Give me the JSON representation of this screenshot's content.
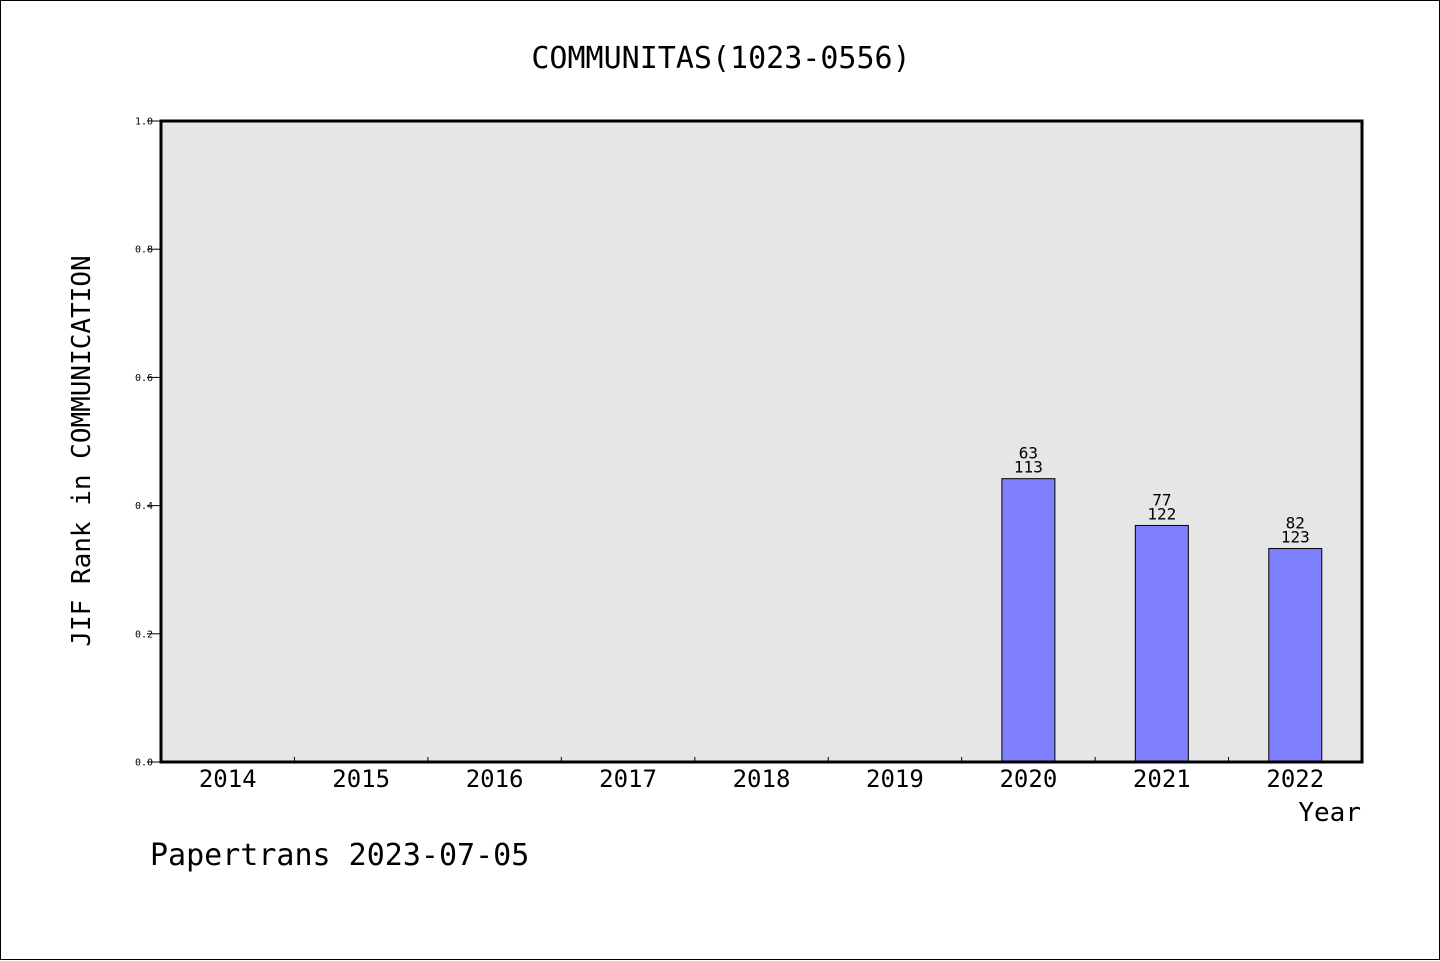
{
  "chart_data": {
    "type": "bar",
    "title": "COMMUNITAS(1023-0556)",
    "xlabel": "Year",
    "ylabel": "JIF Rank in COMMUNICATION",
    "categories": [
      "2014",
      "2015",
      "2016",
      "2017",
      "2018",
      "2019",
      "2020",
      "2021",
      "2022"
    ],
    "series": [
      {
        "values": [
          null,
          null,
          null,
          null,
          null,
          null,
          0.442,
          0.369,
          0.333
        ],
        "rank": [
          null,
          null,
          null,
          null,
          null,
          null,
          "63",
          "77",
          "82"
        ],
        "total": [
          null,
          null,
          null,
          null,
          null,
          null,
          "113",
          "122",
          "123"
        ]
      }
    ],
    "ylim": [
      0,
      1.0
    ],
    "yticks": [
      "0.0",
      "0.2",
      "0.4",
      "0.6",
      "0.8",
      "1.0"
    ],
    "bar_color": "#8080ff",
    "plot_background": "#e6e6e6",
    "grid": false
  },
  "footer": "Papertrans 2023-07-05"
}
